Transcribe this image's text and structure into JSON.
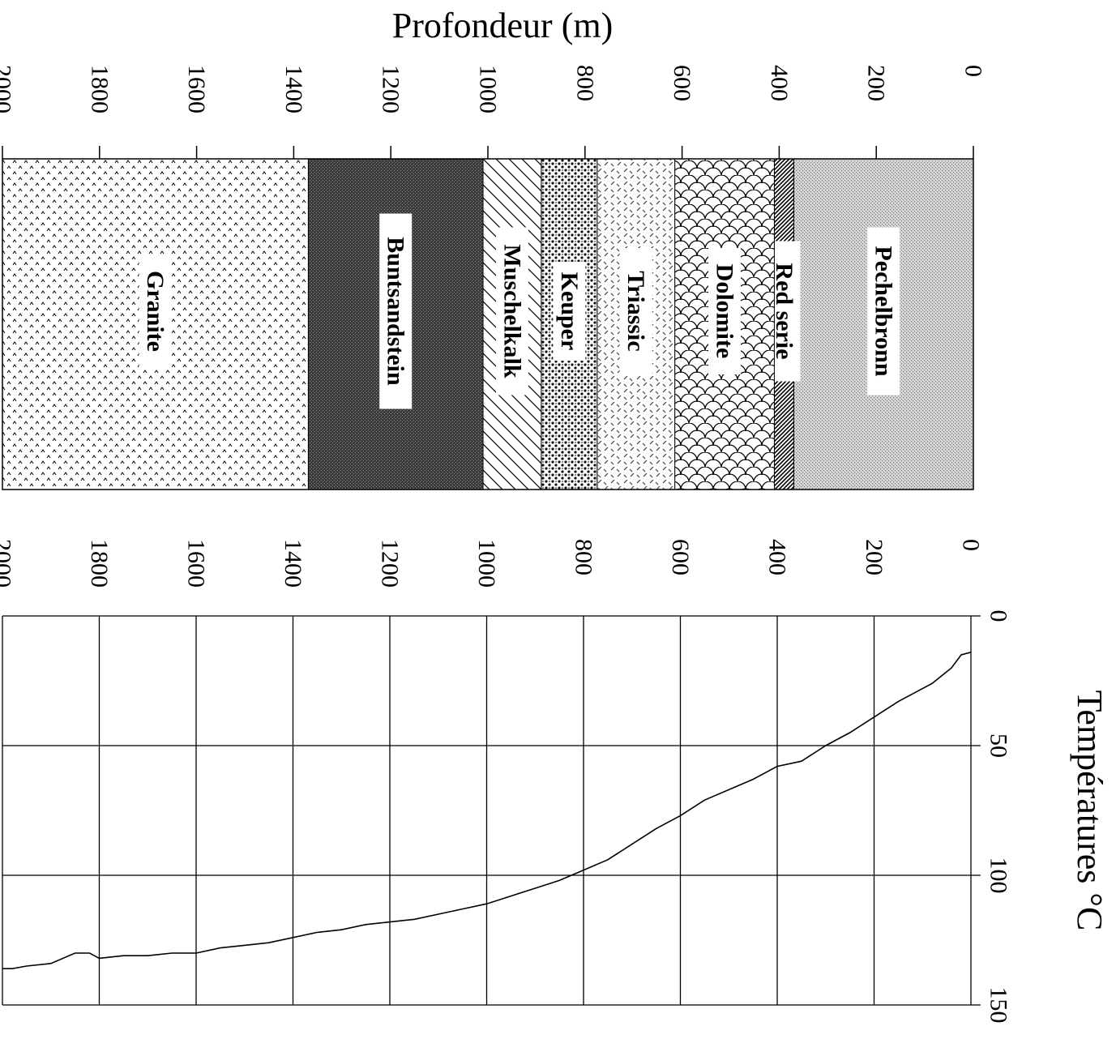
{
  "chart_data": [
    {
      "type": "area",
      "title": "",
      "axis_label": "Profondeur (m)",
      "ticks": [
        "0",
        "200",
        "400",
        "600",
        "800",
        "1000",
        "1200",
        "1400",
        "1600",
        "1800",
        "2000"
      ],
      "depth_range": [
        0,
        2000
      ],
      "layers": [
        {
          "name": "Pechelbronn",
          "top": 0,
          "bottom": 370,
          "pattern": "fine-dots"
        },
        {
          "name": "Red serie",
          "top": 370,
          "bottom": 410,
          "pattern": "dense-hatch"
        },
        {
          "name": "Dolomite",
          "top": 410,
          "bottom": 615,
          "pattern": "scales"
        },
        {
          "name": "Triassic",
          "top": 615,
          "bottom": 775,
          "pattern": "dashes"
        },
        {
          "name": "Keuper",
          "top": 775,
          "bottom": 890,
          "pattern": "coarse-dots"
        },
        {
          "name": "Muschelkalk",
          "top": 890,
          "bottom": 1010,
          "pattern": "diagonal-lines"
        },
        {
          "name": "Buntsandstein",
          "top": 1010,
          "bottom": 1370,
          "pattern": "dark-stipple"
        },
        {
          "name": "Granite",
          "top": 1370,
          "bottom": 2000,
          "pattern": "carets"
        }
      ]
    },
    {
      "type": "line",
      "title": "",
      "xlabel": "Profondeur (m)",
      "ylabel": "Températures °C",
      "x_ticks": [
        "0",
        "200",
        "400",
        "600",
        "800",
        "1000",
        "1200",
        "1400",
        "1600",
        "1800",
        "2000"
      ],
      "y_ticks": [
        "0",
        "50",
        "100",
        "150"
      ],
      "xlim": [
        0,
        2000
      ],
      "ylim": [
        0,
        150
      ],
      "grid": true,
      "series": [
        {
          "x": [
            0,
            20,
            40,
            60,
            80,
            100,
            150,
            200,
            250,
            300,
            350,
            400,
            450,
            500,
            550,
            600,
            650,
            700,
            750,
            800,
            850,
            900,
            950,
            1000,
            1050,
            1100,
            1150,
            1200,
            1250,
            1300,
            1350,
            1400,
            1450,
            1500,
            1550,
            1600,
            1650,
            1700,
            1750,
            1800,
            1820,
            1850,
            1900,
            1950,
            1980,
            2000
          ],
          "y": [
            14,
            15,
            20,
            23,
            26,
            28,
            33,
            39,
            45,
            50,
            56,
            58,
            63,
            67,
            71,
            77,
            82,
            88,
            94,
            98,
            102,
            105,
            108,
            111,
            113,
            115,
            117,
            118,
            119,
            121,
            122,
            124,
            126,
            127,
            128,
            130,
            130,
            131,
            131,
            132,
            130,
            130,
            134,
            135,
            136,
            136
          ]
        }
      ]
    }
  ]
}
